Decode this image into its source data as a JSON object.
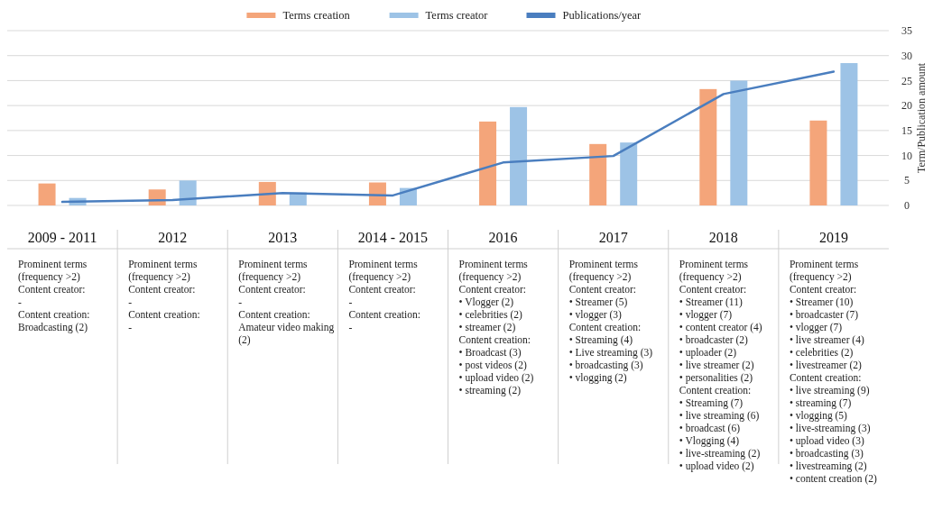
{
  "chart_data": {
    "type": "bar",
    "categories": [
      "2009 - 2011",
      "2012",
      "2013",
      "2014 - 2015",
      "2016",
      "2017",
      "2018",
      "2019"
    ],
    "series": [
      {
        "name": "Terms creation",
        "color": "#f4a57a",
        "values": [
          4.4,
          3.2,
          4.7,
          4.6,
          16.8,
          12.3,
          23.3,
          17
        ]
      },
      {
        "name": "Terms creator",
        "color": "#9dc3e6",
        "values": [
          1.5,
          5,
          2.6,
          3.5,
          19.7,
          12.6,
          25,
          28.5
        ]
      },
      {
        "name": "Publications/year",
        "type": "line",
        "color": "#4a7ebf",
        "values": [
          0.7,
          1.1,
          2.5,
          2.0,
          8.6,
          9.9,
          22.3,
          26.8
        ]
      }
    ],
    "ylabel": "Term/Publication amount",
    "ylim": [
      0,
      35
    ],
    "yticks": [
      0,
      5,
      10,
      15,
      20,
      25,
      30,
      35
    ],
    "grid": "y",
    "legend": "top",
    "annotations": [
      "Prominent terms\n(frequency >2)\nContent creator:\n-\nContent creation:\nBroadcasting (2)",
      "Prominent terms\n(frequency >2)\nContent creator:\n-\nContent creation:\n-",
      "Prominent terms\n(frequency >2)\nContent creator:\n-\nContent creation:\nAmateur video making\n(2)",
      "Prominent terms\n(frequency >2)\nContent creator:\n-\nContent creation:\n-",
      "Prominent terms\n(frequency >2)\nContent creator:\n•   Vlogger (2)\n•   celebrities (2)\n•   streamer (2)\nContent creation:\n•   Broadcast (3)\n•   post videos (2)\n•   upload video (2)\n•   streaming (2)",
      "Prominent terms\n(frequency >2)\nContent creator:\n•   Streamer (5)\n•   vlogger (3)\nContent creation:\n•   Streaming (4)\n•   Live streaming (3)\n•   broadcasting (3)\n•   vlogging (2)",
      "Prominent terms\n(frequency >2)\nContent creator:\n•   Streamer (11)\n•   vlogger (7)\n•   content creator (4)\n•   broadcaster (2)\n•   uploader (2)\n•   live streamer (2)\n•   personalities (2)\nContent creation:\n•   Streaming (7)\n•   live streaming (6)\n•   broadcast (6)\n•   Vlogging (4)\n•   live-streaming (2)\n•   upload video (2)",
      "Prominent terms\n(frequency >2)\nContent creator:\n•   Streamer (10)\n•   broadcaster (7)\n•   vlogger (7)\n•   live streamer (4)\n•   celebrities (2)\n•   livestreamer (2)\nContent creation:\n•   live streaming (9)\n•   streaming (7)\n•   vlogging (5)\n•   live-streaming (3)\n•   upload video (3)\n•   broadcasting (3)\n•   livestreaming (2)\n•   content creation (2)"
    ]
  }
}
